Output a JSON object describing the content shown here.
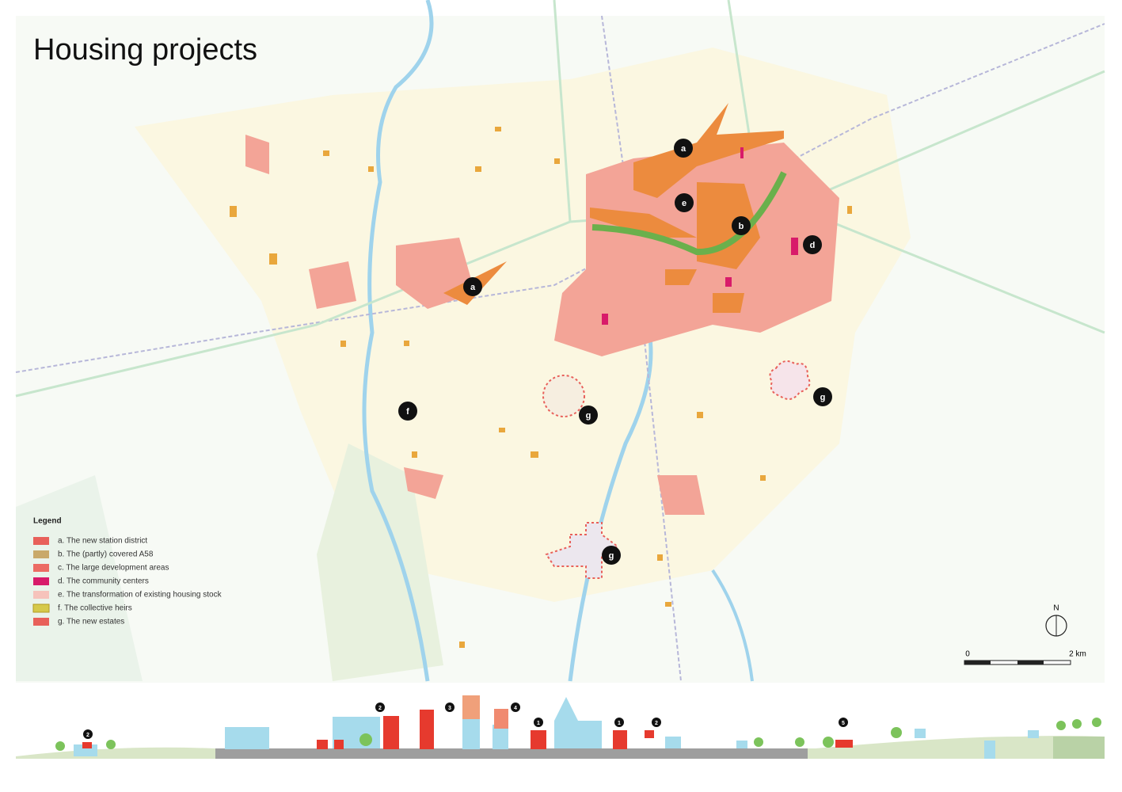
{
  "title": "Housing projects",
  "legend": {
    "title": "Legend",
    "items": [
      {
        "label": "a. The new station district",
        "color": "#e8605a"
      },
      {
        "label": "b. The (partly) covered A58",
        "color": "#c9a96a"
      },
      {
        "label": "c. The large development areas",
        "color": "#ec6b63"
      },
      {
        "label": "d. The community centers",
        "color": "#d81b6a"
      },
      {
        "label": "e. The transformation of existing housing stock",
        "color": "#f6c3bb"
      },
      {
        "label": "f. The collective heirs",
        "color": "#d6c94a"
      },
      {
        "label": "g. The new estates",
        "color": "#e8605a"
      }
    ]
  },
  "markers": [
    "a",
    "e",
    "b",
    "d",
    "a",
    "f",
    "g",
    "g",
    "g"
  ],
  "north": "N",
  "scale": {
    "start": "0",
    "end": "2 km"
  },
  "section_markers": [
    "2",
    "2",
    "3",
    "4",
    "1",
    "1",
    "2",
    "5"
  ]
}
